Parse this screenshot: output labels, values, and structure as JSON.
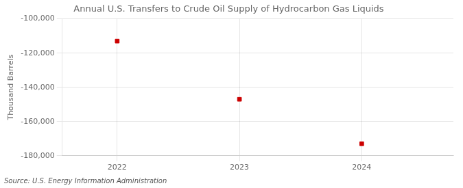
{
  "chart_data": {
    "type": "scatter",
    "title": "Annual U.S. Transfers to Crude Oil Supply of Hydrocarbon Gas Liquids",
    "ylabel": "Thousand Barrels",
    "source": "Source: U.S. Energy Information Administration",
    "x": [
      2022,
      2023,
      2024
    ],
    "values": [
      -113000,
      -147000,
      -173000
    ],
    "color": "#cc0000",
    "marker": "square",
    "xlim": [
      2021.55,
      2024.75
    ],
    "xticks": [
      2022,
      2023,
      2024
    ],
    "ylim": [
      -180000,
      -100000
    ],
    "yticks": [
      {
        "value": -180000,
        "label": "-180,000"
      },
      {
        "value": -160000,
        "label": "-160,000"
      },
      {
        "value": -140000,
        "label": "-140,000"
      },
      {
        "value": -120000,
        "label": "-120,000"
      },
      {
        "value": -100000,
        "label": "-100,000"
      }
    ],
    "grid": true
  }
}
